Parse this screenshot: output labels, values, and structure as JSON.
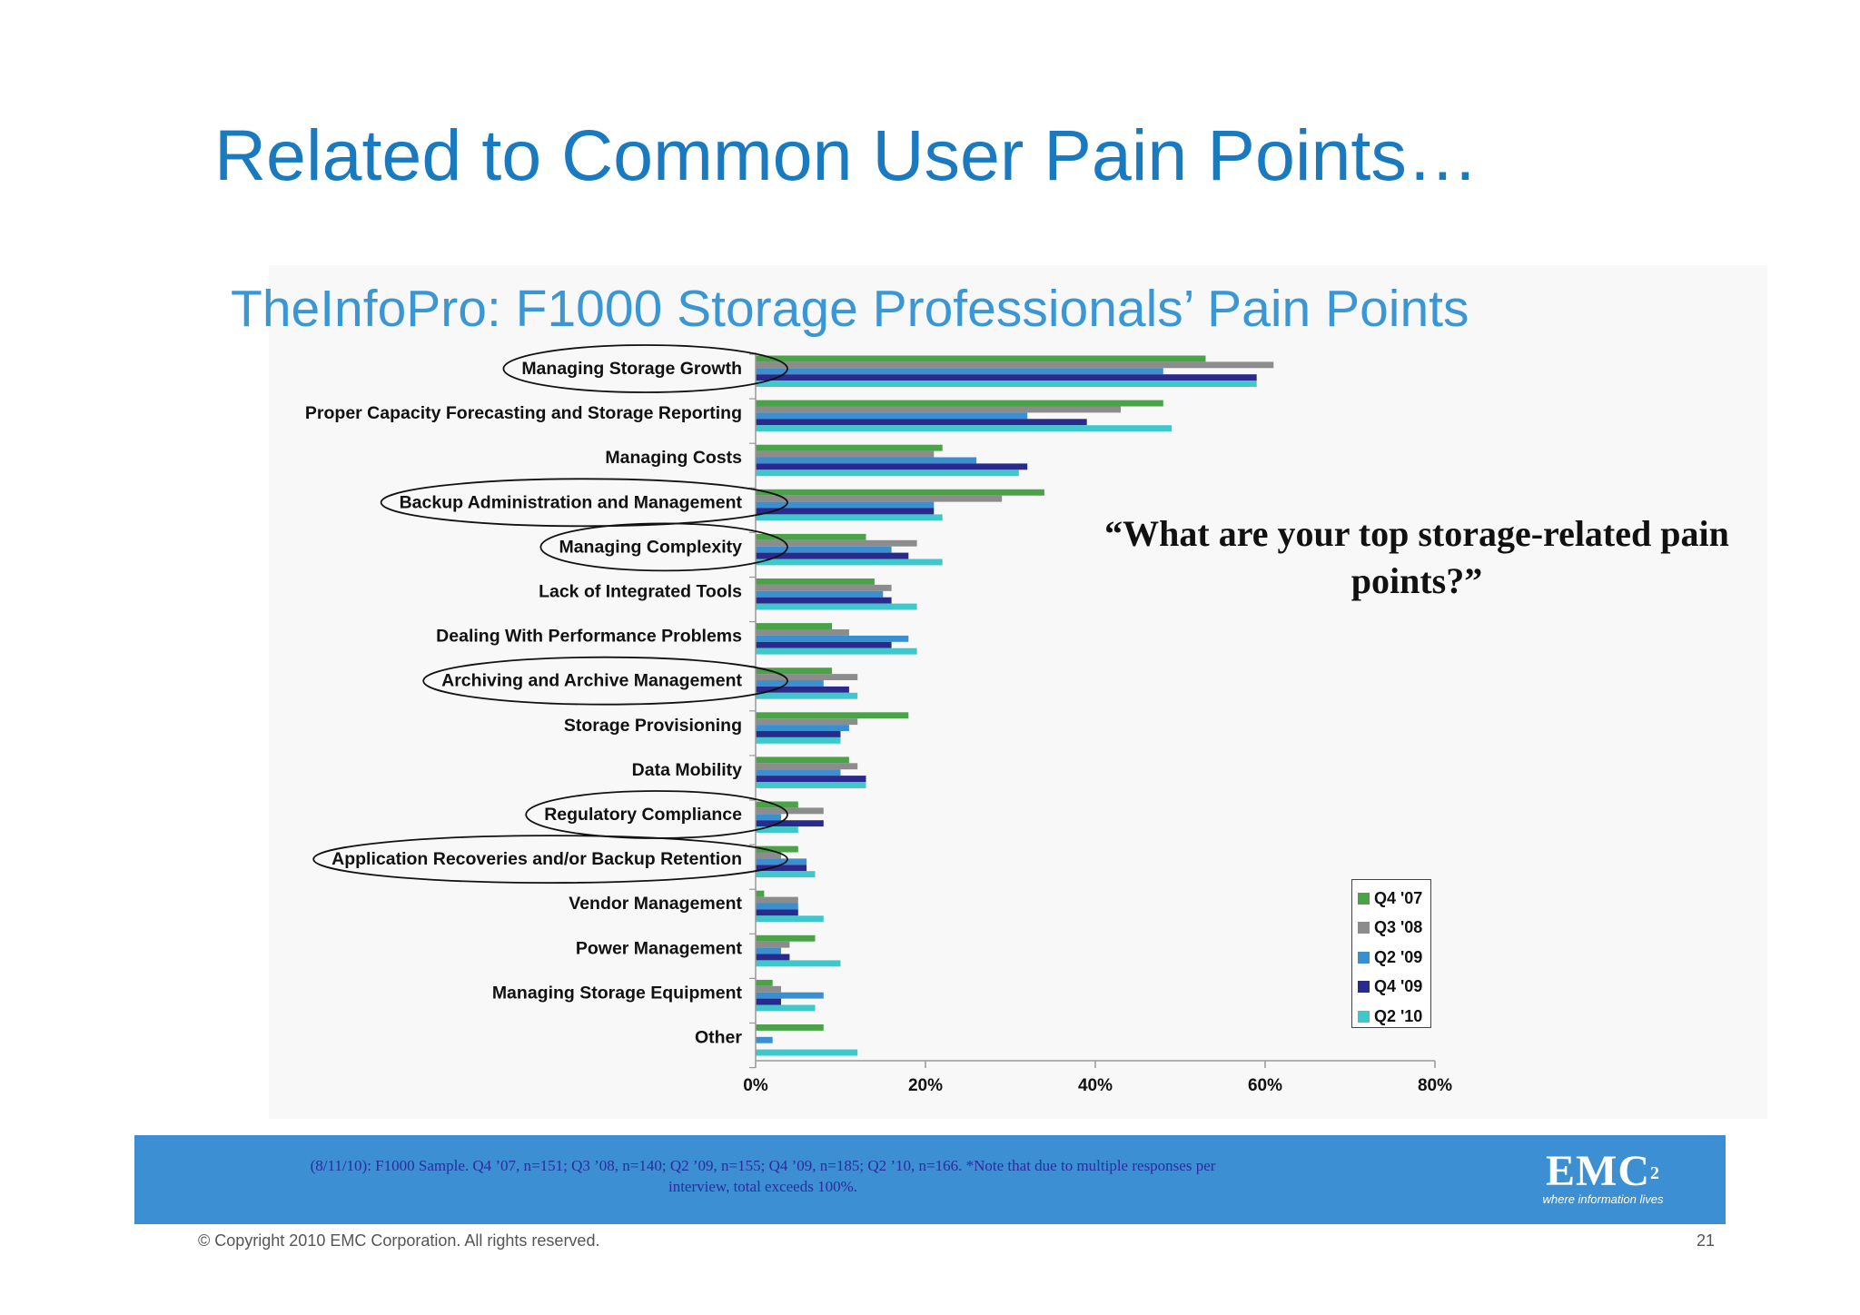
{
  "slide": {
    "title": "Related to Common User Pain Points…",
    "question": "“What are your top storage-related pain points?”",
    "footer_note": "(8/11/10): F1000 Sample. Q4 ’07, n=151; Q3 ’08, n=140; Q2 ’09, n=155; Q4 ’09, n=185; Q2 ’10, n=166. *Note that due to multiple responses per interview, total exceeds 100%.",
    "logo_text": "EMC",
    "logo_superscript": "2",
    "logo_tagline": "where information lives",
    "copyright": "© Copyright 2010 EMC Corporation. All rights reserved.",
    "page_number": "21"
  },
  "chart_data": {
    "type": "bar",
    "orientation": "horizontal",
    "title": "TheInfoPro: F1000 Storage Professionals’ Pain Points",
    "categories": [
      "Managing Storage Growth",
      "Proper Capacity Forecasting and Storage Reporting",
      "Managing Costs",
      "Backup Administration and Management",
      "Managing Complexity",
      "Lack of Integrated Tools",
      "Dealing With Performance Problems",
      "Archiving and Archive Management",
      "Storage Provisioning",
      "Data Mobility",
      "Regulatory Compliance",
      "Application Recoveries and/or Backup Retention",
      "Vendor Management",
      "Power Management",
      "Managing Storage Equipment",
      "Other"
    ],
    "series": [
      {
        "name": "Q4 '07",
        "color": "#4aa346",
        "values": [
          53,
          48,
          22,
          34,
          13,
          14,
          9,
          9,
          18,
          11,
          5,
          5,
          1,
          7,
          2,
          8
        ]
      },
      {
        "name": "Q3 '08",
        "color": "#8c8c8c",
        "values": [
          61,
          43,
          21,
          29,
          19,
          16,
          11,
          12,
          12,
          12,
          8,
          3,
          5,
          4,
          3,
          0
        ]
      },
      {
        "name": "Q2 '09",
        "color": "#3a8fd1",
        "values": [
          48,
          32,
          26,
          21,
          16,
          15,
          18,
          8,
          11,
          10,
          3,
          6,
          5,
          3,
          8,
          2
        ]
      },
      {
        "name": "Q4 '09",
        "color": "#2a2a8c",
        "values": [
          59,
          39,
          32,
          21,
          18,
          16,
          16,
          11,
          10,
          13,
          8,
          6,
          5,
          4,
          3,
          0
        ]
      },
      {
        "name": "Q2 '10",
        "color": "#3ec8cc",
        "values": [
          59,
          49,
          31,
          22,
          22,
          19,
          19,
          12,
          10,
          13,
          5,
          7,
          8,
          10,
          7,
          12
        ]
      }
    ],
    "xlim": [
      0,
      80
    ],
    "xticks": [
      "0%",
      "20%",
      "40%",
      "60%",
      "80%"
    ],
    "xtick_values": [
      0,
      20,
      40,
      60,
      80
    ],
    "grid": false,
    "legend_position": "bottom-right",
    "circled_categories": [
      "Managing Storage Growth",
      "Backup Administration and Management",
      "Managing Complexity",
      "Archiving and Archive Management",
      "Regulatory Compliance",
      "Application Recoveries and/or Backup Retention"
    ]
  }
}
